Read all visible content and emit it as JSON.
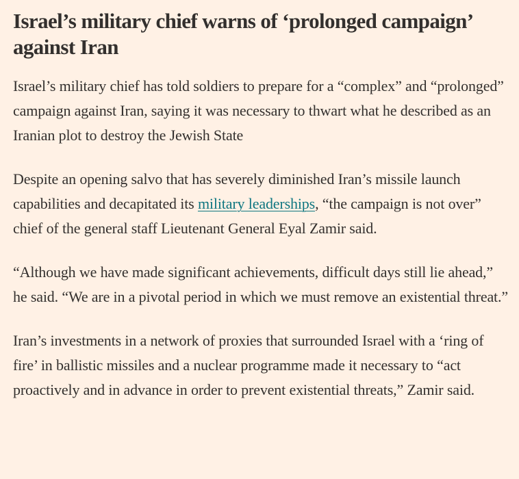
{
  "article": {
    "headline": "Israel’s military chief warns of ‘prolonged campaign’ against Iran",
    "paragraphs": [
      {
        "text": "Israel’s military chief has told soldiers to prepare for a “complex” and “prolonged” campaign against Iran, saying it was necessary to thwart what he described as an Iranian plot to destroy the Jewish State"
      },
      {
        "before": "Despite an opening salvo that has severely diminished Iran’s missile launch capabilities and decapitated its ",
        "link": "military leaderships",
        "after": ", “the campaign is not over” chief of the general staff Lieutenant General Eyal Zamir said."
      },
      {
        "text": "“Although we have made significant achievements, difficult days still lie ahead,” he said. “We are in a pivotal period in which we must remove an existential threat.”"
      },
      {
        "text": "Iran’s investments in a network of proxies that surrounded Israel with a ‘ring of fire’ in ballistic missiles and a nuclear programme made it necessary to “act proactively and in advance in order to prevent existential threats,” Zamir said."
      }
    ]
  },
  "colors": {
    "background": "#FFF1E5",
    "text": "#33302E",
    "link": "#0D7680"
  }
}
